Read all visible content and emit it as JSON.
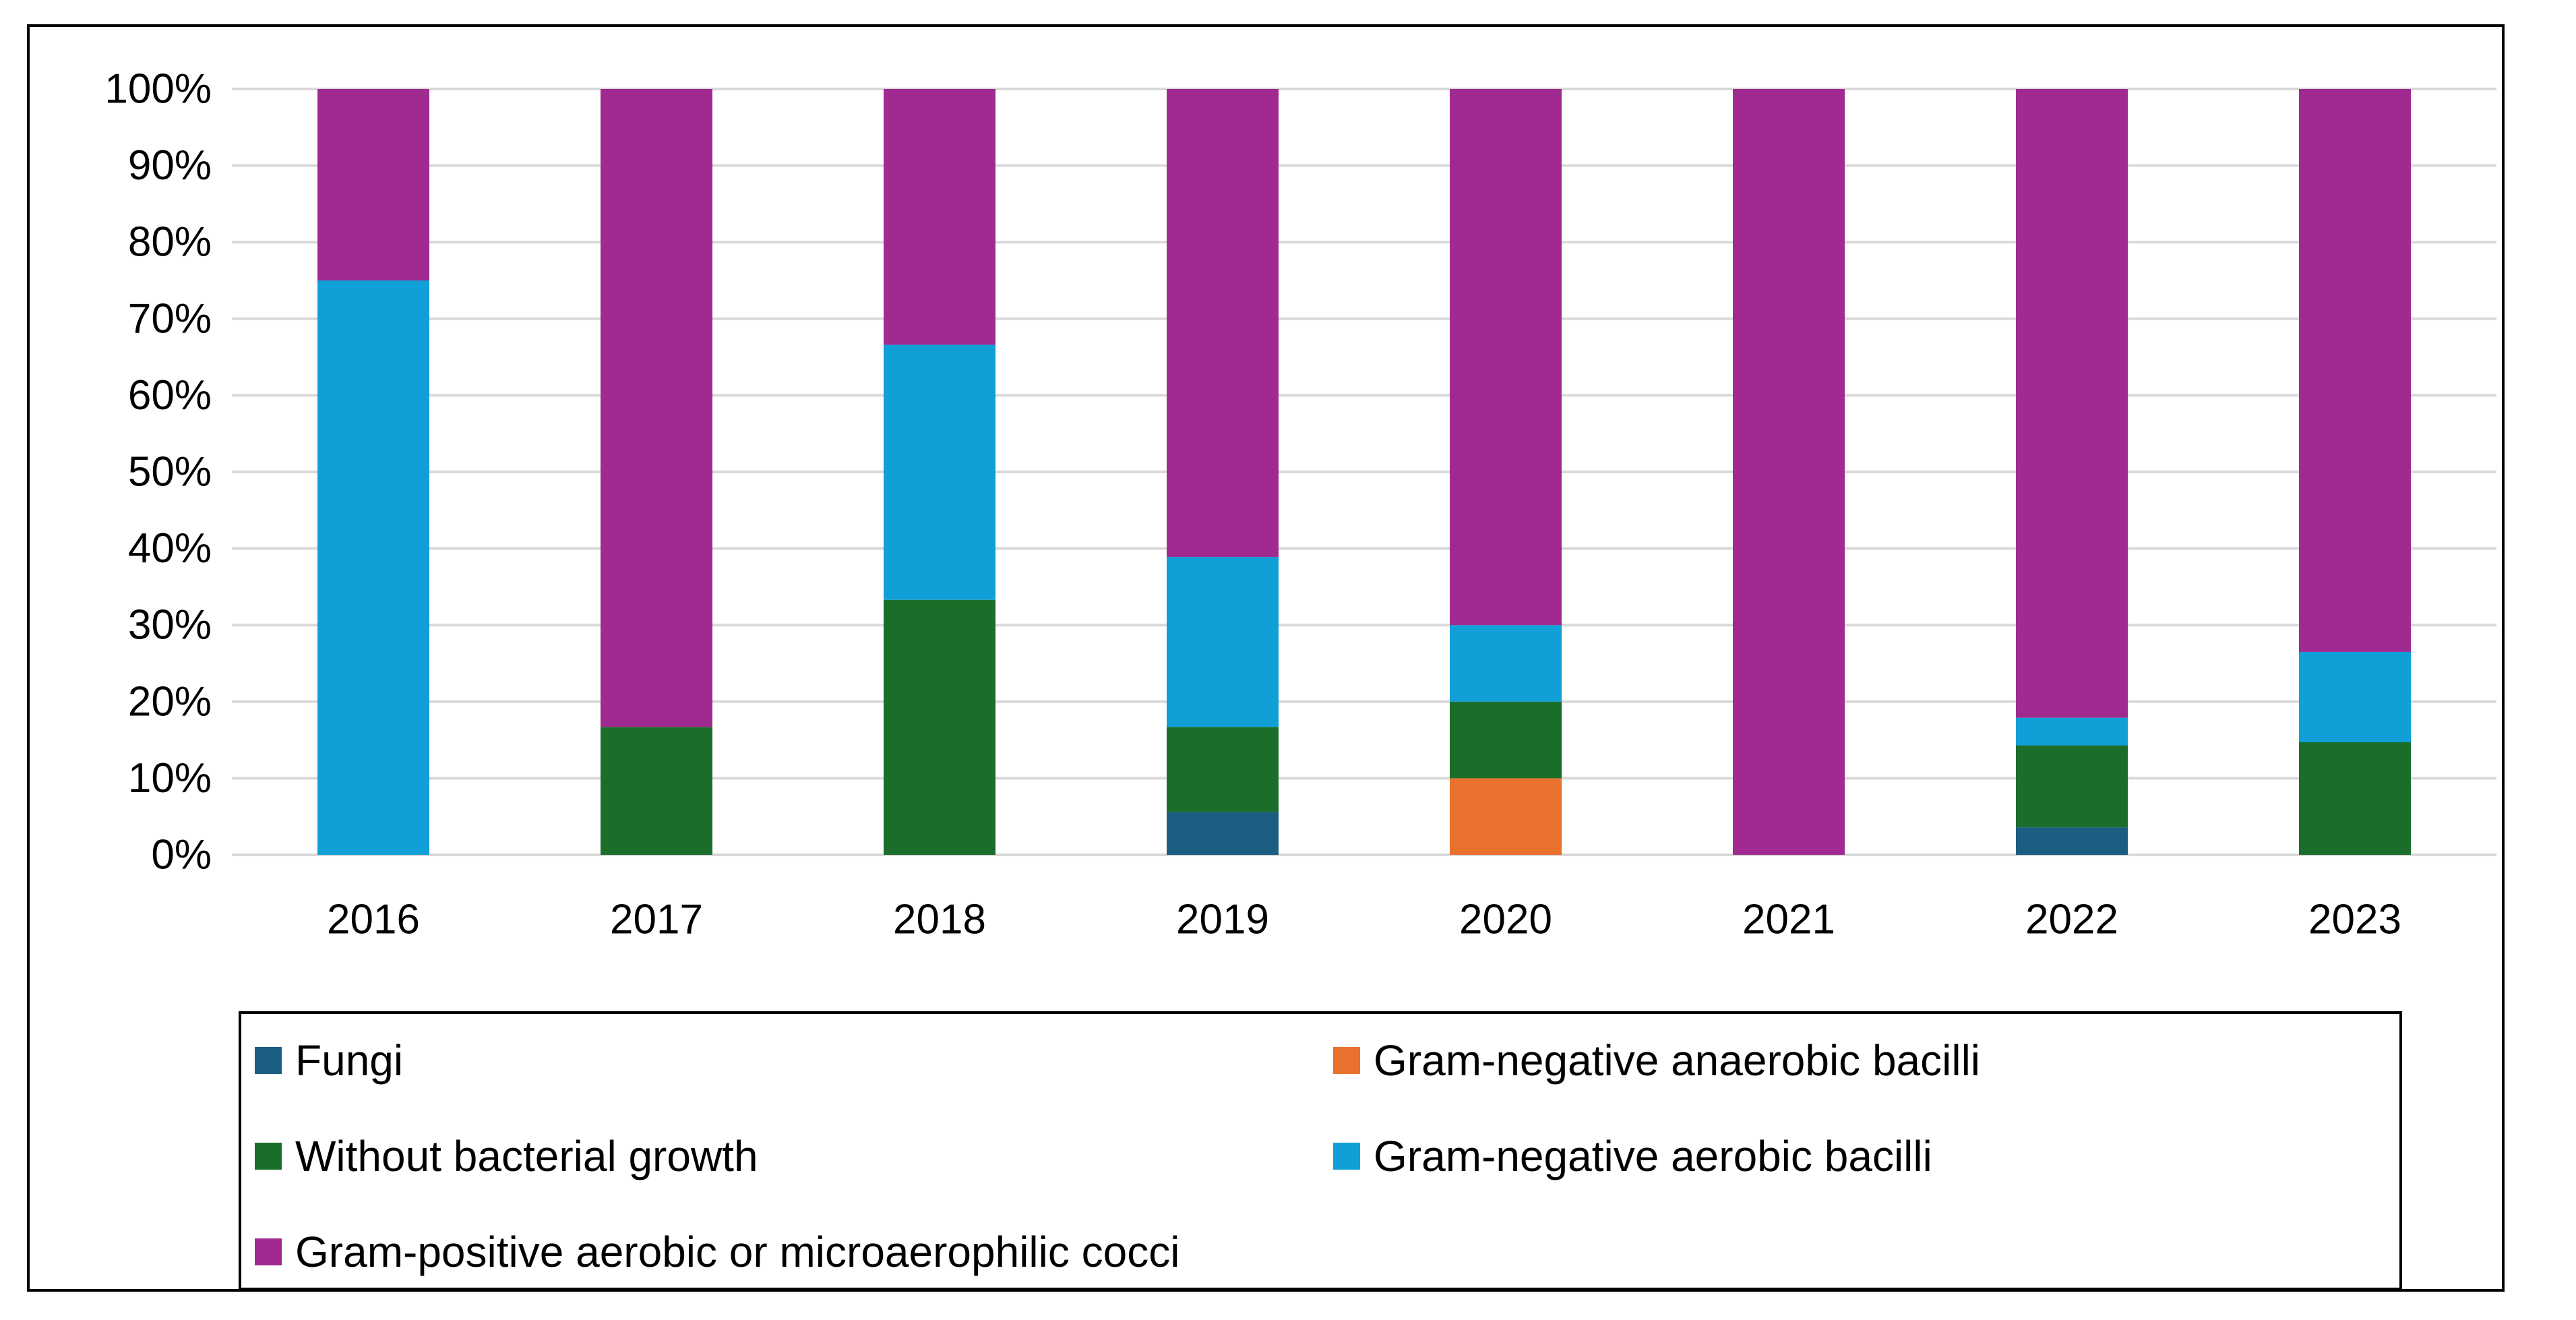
{
  "chart_data": {
    "type": "bar",
    "stacked": true,
    "title": "",
    "xlabel": "",
    "ylabel": "",
    "ylim": [
      0,
      100
    ],
    "y_ticks": [
      "0%",
      "10%",
      "20%",
      "30%",
      "40%",
      "50%",
      "60%",
      "70%",
      "80%",
      "90%",
      "100%"
    ],
    "grid": true,
    "legend_position": "bottom",
    "categories": [
      "2016",
      "2017",
      "2018",
      "2019",
      "2020",
      "2021",
      "2022",
      "2023"
    ],
    "series": [
      {
        "name": "Fungi",
        "color": "#1b5e82",
        "values": [
          0,
          0,
          0,
          5.6,
          0,
          0,
          3.6,
          0
        ]
      },
      {
        "name": "Gram-negative anaerobic bacilli",
        "color": "#e8712e",
        "values": [
          0,
          0,
          0,
          0,
          10,
          0,
          0,
          0
        ]
      },
      {
        "name": "Without bacterial growth",
        "color": "#1b6e2a",
        "values": [
          0,
          16.7,
          33.3,
          11.1,
          10,
          0,
          10.7,
          14.7
        ]
      },
      {
        "name": "Gram-negative aerobic bacilli",
        "color": "#119fd8",
        "values": [
          75,
          0,
          33.3,
          22.2,
          10,
          0,
          3.6,
          11.8
        ]
      },
      {
        "name": "Gram-positive aerobic or microaerophilic cocci",
        "color": "#a02a90",
        "values": [
          25,
          83.3,
          33.4,
          61.1,
          70,
          100,
          82.1,
          73.5
        ]
      }
    ]
  }
}
